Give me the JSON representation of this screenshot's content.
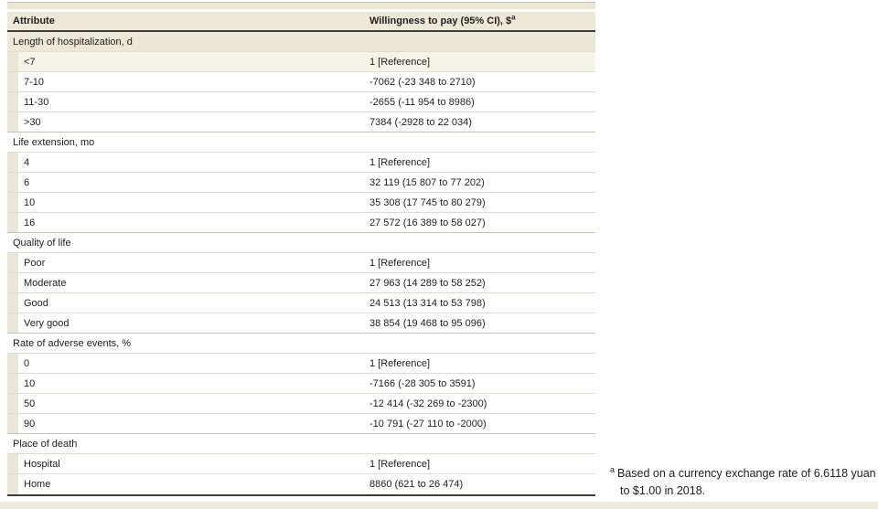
{
  "table": {
    "columns": [
      "Attribute",
      "Willingness to pay (95% CI), $"
    ],
    "header_superscript": "a",
    "rows": [
      {
        "type": "section",
        "label": "Length of hospitalization, d",
        "value": ""
      },
      {
        "type": "item",
        "label": "<7",
        "value": "1 [Reference]"
      },
      {
        "type": "item",
        "label": "7-10",
        "value": "-7062 (-23 348 to 2710)"
      },
      {
        "type": "item",
        "label": "11-30",
        "value": "-2655 (-11 954 to 8986)"
      },
      {
        "type": "item",
        "label": ">30",
        "value": "7384 (-2928 to 22 034)"
      },
      {
        "type": "section",
        "label": "Life extension, mo",
        "value": ""
      },
      {
        "type": "item",
        "label": "4",
        "value": "1 [Reference]"
      },
      {
        "type": "item",
        "label": "6",
        "value": "32 119 (15 807 to 77 202)"
      },
      {
        "type": "item",
        "label": "10",
        "value": "35 308 (17 745 to 80 279)"
      },
      {
        "type": "item",
        "label": "16",
        "value": "27 572 (16 389 to 58 027)"
      },
      {
        "type": "section",
        "label": "Quality of life",
        "value": ""
      },
      {
        "type": "item",
        "label": "Poor",
        "value": "1 [Reference]"
      },
      {
        "type": "item",
        "label": "Moderate",
        "value": "27 963 (14 289 to 58 252)"
      },
      {
        "type": "item",
        "label": "Good",
        "value": "24 513 (13 314 to 53 798)"
      },
      {
        "type": "item",
        "label": "Very good",
        "value": "38 854 (19 468 to 95 096)"
      },
      {
        "type": "section",
        "label": "Rate of adverse events, %",
        "value": ""
      },
      {
        "type": "item",
        "label": "0",
        "value": "1 [Reference]"
      },
      {
        "type": "item",
        "label": "10",
        "value": "-7166 (-28 305 to 3591)"
      },
      {
        "type": "item",
        "label": "50",
        "value": "-12 414 (-32 269 to -2300)"
      },
      {
        "type": "item",
        "label": "90",
        "value": "-10 791 (-27 110 to -2000)"
      },
      {
        "type": "section",
        "label": "Place of death",
        "value": ""
      },
      {
        "type": "item",
        "label": "Hospital",
        "value": "1 [Reference]"
      },
      {
        "type": "item",
        "label": "Home",
        "value": "8860 (621 to 26 474)"
      }
    ]
  },
  "footnote": {
    "marker": "a",
    "text": "Based on a currency exchange rate of 6.6118 yuan to $1.00 in 2018."
  },
  "colors": {
    "header_bg": "#eee8d8",
    "first_section_bg": "#ece7d6",
    "reference_row_bg": "#f6f3e9",
    "indent_block": "#eae7d8",
    "rule_dark": "#3e3c34",
    "rule_light": "#dedbcf",
    "text": "#1f1e1b"
  }
}
